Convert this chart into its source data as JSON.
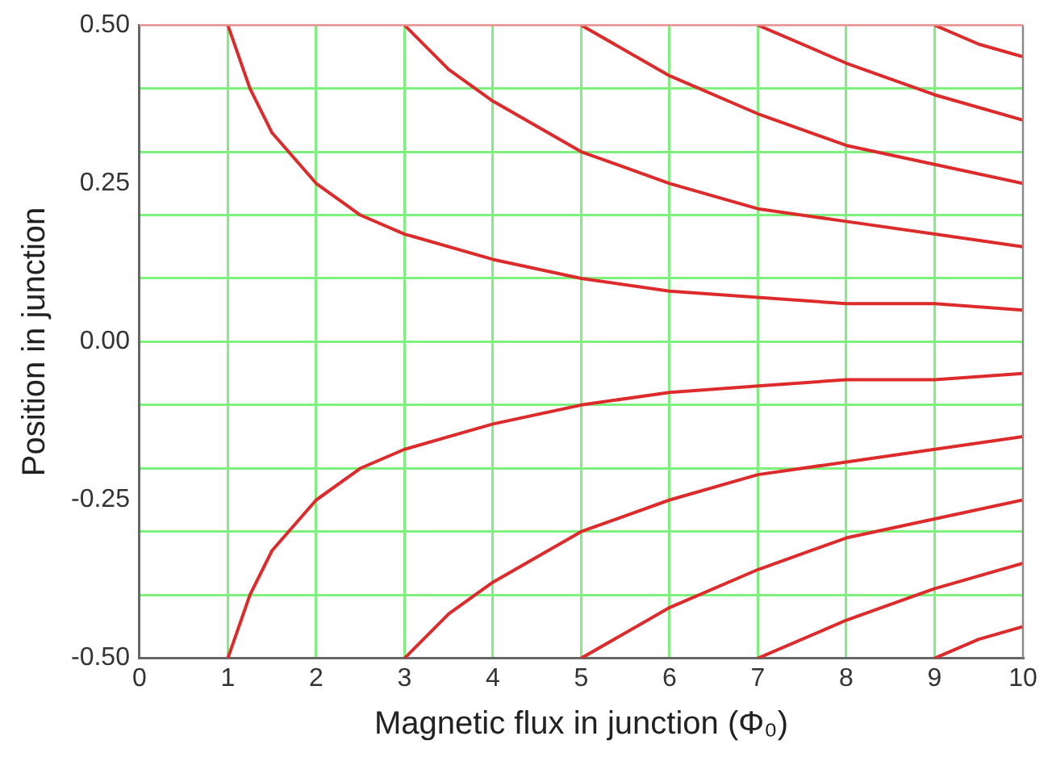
{
  "chart_data": {
    "type": "line",
    "xlabel": "Magnetic flux in junction (Φ₀)",
    "ylabel": "Position in junction",
    "xlim": [
      0,
      10
    ],
    "xticks": [
      0,
      1,
      2,
      3,
      4,
      5,
      6,
      7,
      8,
      9,
      10
    ],
    "ylim": [
      -0.5,
      0.5
    ],
    "yticks": [
      {
        "value": 0.5,
        "label": "0.50"
      },
      {
        "value": 0.4,
        "label": null
      },
      {
        "value": 0.3,
        "label": null
      },
      {
        "value": 0.25,
        "label": "0.25"
      },
      {
        "value": 0.2,
        "label": null
      },
      {
        "value": 0.1,
        "label": null
      },
      {
        "value": 0,
        "label": null
      },
      {
        "value": 0,
        "label": "0.00"
      },
      {
        "value": -0.1,
        "label": null
      },
      {
        "value": -0.2,
        "label": null
      },
      {
        "value": -0.25,
        "label": "-0.25"
      },
      {
        "value": -0.3,
        "label": null
      },
      {
        "value": -0.4,
        "label": null
      },
      {
        "value": -0.5,
        "label": "-0.50"
      }
    ],
    "grid": true,
    "legend": false,
    "marker": "none",
    "line_style": "solid",
    "series": [
      {
        "color": "#dd2a2a",
        "x": [
          1,
          1.25,
          1.5,
          2,
          2.5,
          3,
          4,
          5,
          6,
          7,
          8,
          9,
          10
        ],
        "values": [
          0.5,
          0.4,
          0.33,
          0.25,
          0.2,
          0.17,
          0.13,
          0.1,
          0.08,
          0.07,
          0.06,
          0.06,
          0.05
        ]
      },
      {
        "color": "#dd2a2a",
        "x": [
          3,
          3.5,
          4,
          5,
          6,
          7,
          8,
          9,
          10
        ],
        "values": [
          0.5,
          0.43,
          0.38,
          0.3,
          0.25,
          0.21,
          0.19,
          0.17,
          0.15
        ]
      },
      {
        "color": "#dd2a2a",
        "x": [
          5,
          6,
          7,
          8,
          9,
          10
        ],
        "values": [
          0.5,
          0.42,
          0.36,
          0.31,
          0.28,
          0.25
        ]
      },
      {
        "color": "#dd2a2a",
        "x": [
          7,
          8,
          9,
          10
        ],
        "values": [
          0.5,
          0.44,
          0.39,
          0.35
        ]
      },
      {
        "color": "#dd2a2a",
        "x": [
          9,
          9.5,
          10
        ],
        "values": [
          0.5,
          0.47,
          0.45
        ]
      },
      {
        "color": "#dd2a2a",
        "x": [
          1,
          1.25,
          1.5,
          2,
          2.5,
          3,
          4,
          5,
          6,
          7,
          8,
          9,
          10
        ],
        "values": [
          -0.5,
          -0.4,
          -0.33,
          -0.25,
          -0.2,
          -0.17,
          -0.13,
          -0.1,
          -0.08,
          -0.07,
          -0.06,
          -0.06,
          -0.05
        ]
      },
      {
        "color": "#dd2a2a",
        "x": [
          3,
          3.5,
          4,
          5,
          6,
          7,
          8,
          9,
          10
        ],
        "values": [
          -0.5,
          -0.43,
          -0.38,
          -0.3,
          -0.25,
          -0.21,
          -0.19,
          -0.17,
          -0.15
        ]
      },
      {
        "color": "#dd2a2a",
        "x": [
          5,
          6,
          7,
          8,
          9,
          10
        ],
        "values": [
          -0.5,
          -0.42,
          -0.36,
          -0.31,
          -0.28,
          -0.25
        ]
      },
      {
        "color": "#dd2a2a",
        "x": [
          7,
          8,
          9,
          10
        ],
        "values": [
          -0.5,
          -0.44,
          -0.39,
          -0.35
        ]
      },
      {
        "color": "#dd2a2a",
        "x": [
          9,
          9.5,
          10
        ],
        "values": [
          -0.5,
          -0.47,
          -0.45
        ]
      }
    ]
  }
}
